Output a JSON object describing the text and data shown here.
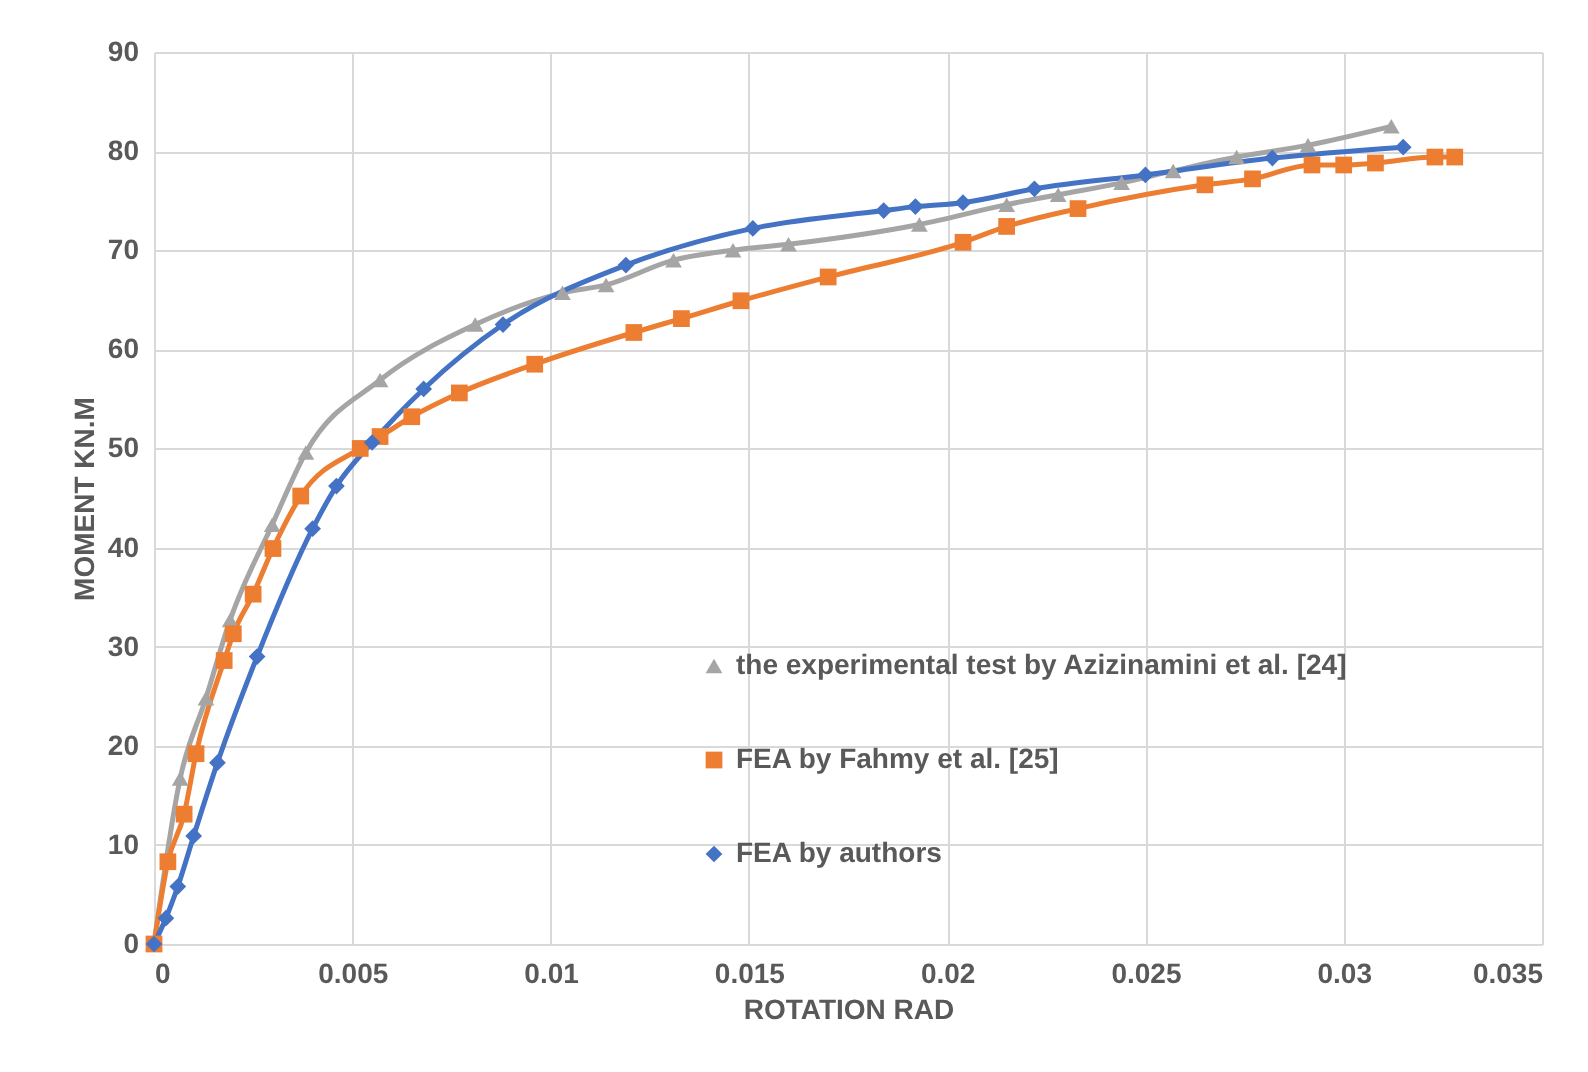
{
  "chart_data": {
    "type": "line",
    "xlabel": "ROTATION RAD",
    "ylabel": "MOMENT KN.M",
    "xlim": [
      0,
      0.035
    ],
    "xticks": [
      0,
      0.005,
      0.01,
      0.015,
      0.02,
      0.025,
      0.03,
      0.035
    ],
    "ylim": [
      0,
      90
    ],
    "yticks": [
      0,
      10,
      20,
      30,
      40,
      50,
      60,
      70,
      80,
      90
    ],
    "grid": true,
    "legend": "bottom right",
    "series": [
      {
        "name": "the experimental test by Azizinamini et al. [24]",
        "color": "#a5a5a5",
        "marker": "triangle",
        "x": [
          0,
          0.00066,
          0.00131,
          0.00192,
          0.00298,
          0.00383,
          0.0057,
          0.0081,
          0.0103,
          0.0114,
          0.0131,
          0.0146,
          0.016,
          0.0193,
          0.0215,
          0.0228,
          0.0244,
          0.0257,
          0.0273,
          0.0291,
          0.0312
        ],
        "values": [
          0,
          16.7,
          24.8,
          32.7,
          42.3,
          49.6,
          56.9,
          62.5,
          65.7,
          66.5,
          69.0,
          70.0,
          70.6,
          72.6,
          74.6,
          75.6,
          76.8,
          78.0,
          79.4,
          80.6,
          82.5
        ]
      },
      {
        "name": "FEA by Fahmy et al. [25]",
        "color": "#ed7d31",
        "marker": "square",
        "x": [
          0,
          0.00035,
          0.00076,
          0.00106,
          0.00177,
          0.002,
          0.0025,
          0.003,
          0.0037,
          0.0052,
          0.0057,
          0.0065,
          0.0077,
          0.0096,
          0.0121,
          0.0133,
          0.0148,
          0.017,
          0.0204,
          0.0215,
          0.0233,
          0.0265,
          0.0277,
          0.0292,
          0.03,
          0.0308,
          0.0323,
          0.0328
        ],
        "values": [
          0,
          8.3,
          13.1,
          19.2,
          28.6,
          31.3,
          35.3,
          39.9,
          45.2,
          50.0,
          51.2,
          53.2,
          55.6,
          58.5,
          61.7,
          63.1,
          64.9,
          67.3,
          70.8,
          72.4,
          74.2,
          76.6,
          77.2,
          78.6,
          78.6,
          78.8,
          79.4,
          79.4
        ]
      },
      {
        "name": "FEA by authors",
        "color": "#4472c4",
        "marker": "diamond",
        "x": [
          0,
          0.0003,
          0.0006,
          0.001,
          0.0016,
          0.0026,
          0.004,
          0.0046,
          0.0055,
          0.0068,
          0.0088,
          0.0119,
          0.0151,
          0.0184,
          0.0192,
          0.0204,
          0.0222,
          0.025,
          0.0282,
          0.0315
        ],
        "values": [
          0,
          2.6,
          5.8,
          10.9,
          18.3,
          29.0,
          41.9,
          46.2,
          50.6,
          56.0,
          62.5,
          68.5,
          72.2,
          74.0,
          74.4,
          74.8,
          76.2,
          77.6,
          79.3,
          80.4
        ]
      }
    ]
  }
}
